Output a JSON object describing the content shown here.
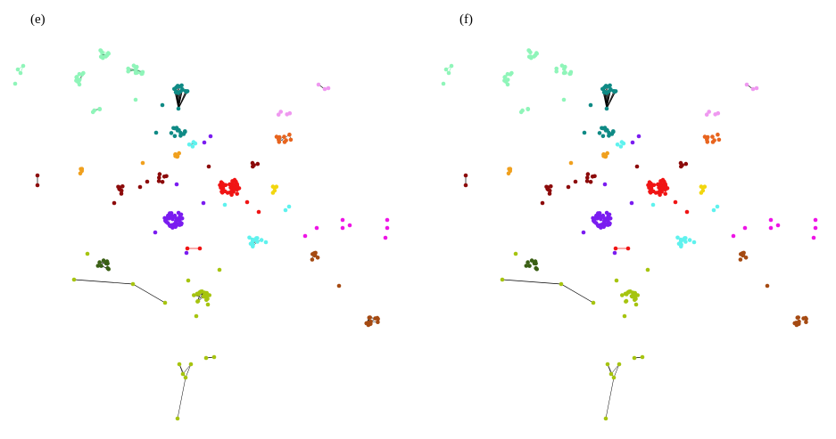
{
  "panels": {
    "left": {
      "label": "(e)"
    },
    "right": {
      "label": "(f)"
    }
  },
  "colors": {
    "mint": "#8ff5b9",
    "teal": "#0f8a85",
    "cyan": "#5ff2ee",
    "purple": "#7a1cf0",
    "red": "#f01414",
    "maroon": "#8c0a0a",
    "orange": "#f0a01e",
    "dark_orange": "#e8641e",
    "yellow": "#f2d60f",
    "magenta": "#ee14e6",
    "pink": "#ef98f0",
    "olive": "#a6c40f",
    "dark_green": "#3a5f14",
    "brown": "#a54a12",
    "edge": "#000000"
  }
}
